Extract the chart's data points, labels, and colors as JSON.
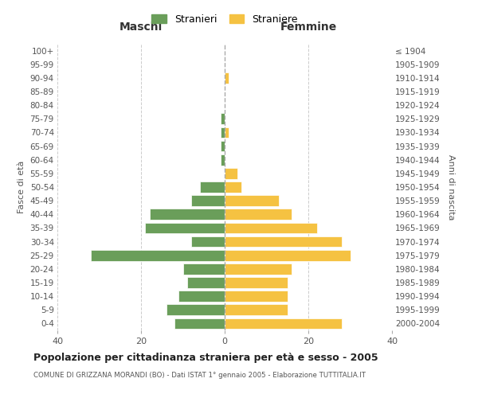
{
  "age_groups": [
    "0-4",
    "5-9",
    "10-14",
    "15-19",
    "20-24",
    "25-29",
    "30-34",
    "35-39",
    "40-44",
    "45-49",
    "50-54",
    "55-59",
    "60-64",
    "65-69",
    "70-74",
    "75-79",
    "80-84",
    "85-89",
    "90-94",
    "95-99",
    "100+"
  ],
  "birth_years": [
    "2000-2004",
    "1995-1999",
    "1990-1994",
    "1985-1989",
    "1980-1984",
    "1975-1979",
    "1970-1974",
    "1965-1969",
    "1960-1964",
    "1955-1959",
    "1950-1954",
    "1945-1949",
    "1940-1944",
    "1935-1939",
    "1930-1934",
    "1925-1929",
    "1920-1924",
    "1915-1919",
    "1910-1914",
    "1905-1909",
    "≤ 1904"
  ],
  "maschi": [
    12,
    14,
    11,
    9,
    10,
    32,
    8,
    19,
    18,
    8,
    6,
    0,
    1,
    1,
    1,
    1,
    0,
    0,
    0,
    0,
    0
  ],
  "femmine": [
    28,
    15,
    15,
    15,
    16,
    30,
    28,
    22,
    16,
    13,
    4,
    3,
    0,
    0,
    1,
    0,
    0,
    0,
    1,
    0,
    0
  ],
  "color_maschi": "#6a9e5a",
  "color_femmine": "#f5c242",
  "title": "Popolazione per cittadinanza straniera per età e sesso - 2005",
  "subtitle": "COMUNE DI GRIZZANA MORANDI (BO) - Dati ISTAT 1° gennaio 2005 - Elaborazione TUTTITALIA.IT",
  "xlabel_left": "Maschi",
  "xlabel_right": "Femmine",
  "ylabel_left": "Fasce di età",
  "ylabel_right": "Anni di nascita",
  "legend_maschi": "Stranieri",
  "legend_femmine": "Straniere",
  "xlim": 40,
  "bg_color": "#ffffff",
  "grid_color": "#cccccc",
  "bar_edge_color": "white"
}
